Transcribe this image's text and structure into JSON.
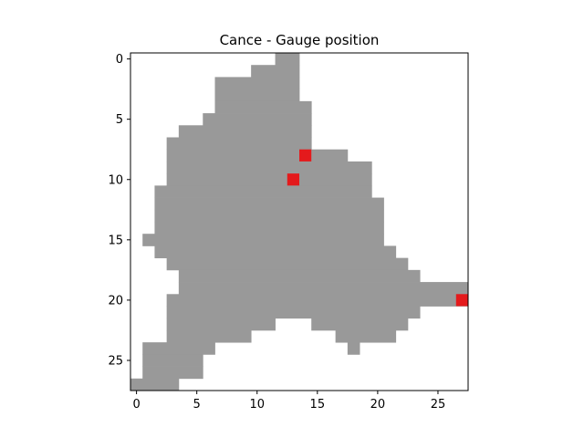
{
  "chart_data": {
    "type": "heatmap",
    "title": "Cance - Gauge position",
    "xlabel": "",
    "ylabel": "",
    "x_ticks": [
      "0",
      "5",
      "10",
      "15",
      "20",
      "25"
    ],
    "y_ticks": [
      "0",
      "5",
      "10",
      "15",
      "20",
      "25"
    ],
    "xlim": [
      -0.5,
      27.5
    ],
    "ylim": [
      27.5,
      -0.5
    ],
    "grid": false,
    "colors": {
      "catchment": "#999999",
      "gauge": "#e41a1c",
      "background": "#ffffff"
    },
    "catchment_rows": [
      {
        "row": 0,
        "spans": [
          [
            12,
            13
          ]
        ]
      },
      {
        "row": 1,
        "spans": [
          [
            10,
            13
          ]
        ]
      },
      {
        "row": 2,
        "spans": [
          [
            7,
            12
          ],
          [
            13,
            13
          ]
        ]
      },
      {
        "row": 3,
        "spans": [
          [
            7,
            12
          ],
          [
            13,
            13
          ]
        ]
      },
      {
        "row": 4,
        "spans": [
          [
            7,
            14
          ]
        ]
      },
      {
        "row": 5,
        "spans": [
          [
            6,
            14
          ]
        ]
      },
      {
        "row": 6,
        "spans": [
          [
            4,
            14
          ]
        ]
      },
      {
        "row": 7,
        "spans": [
          [
            3,
            14
          ]
        ]
      },
      {
        "row": 8,
        "spans": [
          [
            3,
            17
          ]
        ]
      },
      {
        "row": 9,
        "spans": [
          [
            3,
            19
          ]
        ]
      },
      {
        "row": 10,
        "spans": [
          [
            3,
            19
          ]
        ]
      },
      {
        "row": 11,
        "spans": [
          [
            2,
            19
          ]
        ]
      },
      {
        "row": 12,
        "spans": [
          [
            2,
            20
          ]
        ]
      },
      {
        "row": 13,
        "spans": [
          [
            2,
            20
          ]
        ]
      },
      {
        "row": 14,
        "spans": [
          [
            2,
            20
          ]
        ]
      },
      {
        "row": 15,
        "spans": [
          [
            1,
            20
          ]
        ]
      },
      {
        "row": 16,
        "spans": [
          [
            2,
            21
          ]
        ]
      },
      {
        "row": 17,
        "spans": [
          [
            3,
            22
          ]
        ]
      },
      {
        "row": 18,
        "spans": [
          [
            4,
            23
          ]
        ]
      },
      {
        "row": 19,
        "spans": [
          [
            4,
            27
          ]
        ]
      },
      {
        "row": 20,
        "spans": [
          [
            3,
            27
          ]
        ]
      },
      {
        "row": 21,
        "spans": [
          [
            3,
            23
          ]
        ]
      },
      {
        "row": 22,
        "spans": [
          [
            3,
            11
          ],
          [
            15,
            22
          ]
        ]
      },
      {
        "row": 23,
        "spans": [
          [
            3,
            9
          ],
          [
            17,
            21
          ]
        ]
      },
      {
        "row": 24,
        "spans": [
          [
            1,
            6
          ],
          [
            18,
            18
          ]
        ]
      },
      {
        "row": 25,
        "spans": [
          [
            1,
            5
          ]
        ]
      },
      {
        "row": 26,
        "spans": [
          [
            1,
            5
          ]
        ]
      },
      {
        "row": 27,
        "spans": [
          [
            0,
            3
          ]
        ]
      }
    ],
    "gauges": [
      {
        "row": 8,
        "col": 14
      },
      {
        "row": 10,
        "col": 13
      },
      {
        "row": 20,
        "col": 27
      }
    ]
  }
}
